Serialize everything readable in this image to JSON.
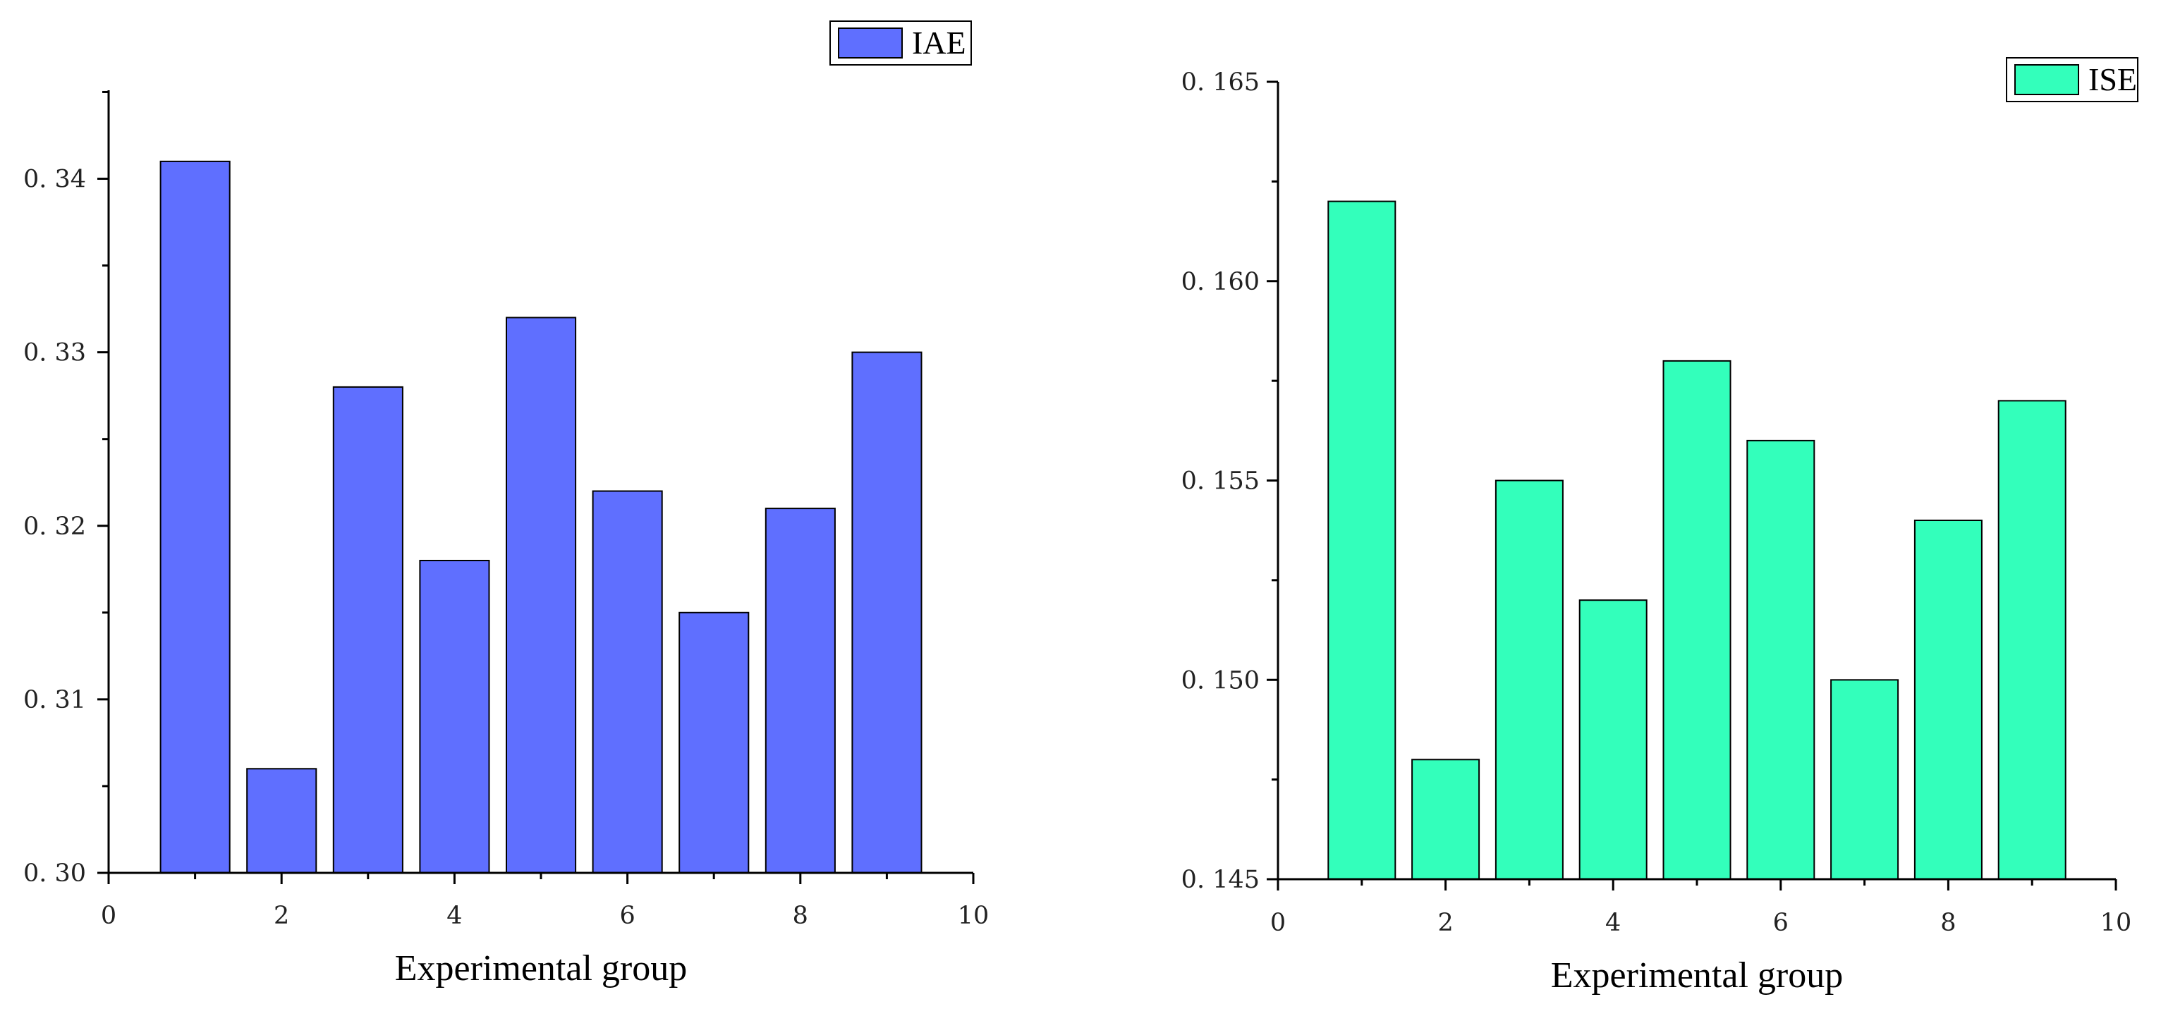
{
  "chart_data": [
    {
      "type": "bar",
      "series_name": "IAE",
      "color": "#5f6fff",
      "x": [
        1,
        2,
        3,
        4,
        5,
        6,
        7,
        8,
        9
      ],
      "values": [
        0.341,
        0.306,
        0.328,
        0.318,
        0.332,
        0.322,
        0.315,
        0.321,
        0.33
      ],
      "xlabel": "Experimental group",
      "ylabel": "",
      "xlim": [
        0,
        10
      ],
      "ylim": [
        0.3,
        0.345
      ],
      "xticks": [
        "0",
        "2",
        "4",
        "6",
        "8",
        "10"
      ],
      "xtick_values": [
        0,
        2,
        4,
        6,
        8,
        10
      ],
      "yticks": [
        "0. 30",
        "0. 31",
        "0. 32",
        "0. 33",
        "0. 34"
      ],
      "ytick_values": [
        0.3,
        0.31,
        0.32,
        0.33,
        0.34
      ],
      "legend": [
        "IAE"
      ],
      "legend_position": "top-right",
      "grid": false
    },
    {
      "type": "bar",
      "series_name": "ISE",
      "color": "#33ffbb",
      "x": [
        1,
        2,
        3,
        4,
        5,
        6,
        7,
        8,
        9
      ],
      "values": [
        0.162,
        0.148,
        0.155,
        0.152,
        0.158,
        0.156,
        0.15,
        0.154,
        0.157
      ],
      "xlabel": "Experimental group",
      "ylabel": "",
      "xlim": [
        0,
        10
      ],
      "ylim": [
        0.145,
        0.165
      ],
      "xticks": [
        "0",
        "2",
        "4",
        "6",
        "8",
        "10"
      ],
      "xtick_values": [
        0,
        2,
        4,
        6,
        8,
        10
      ],
      "yticks": [
        "0. 145",
        "0. 150",
        "0. 155",
        "0. 160",
        "0. 165"
      ],
      "ytick_values": [
        0.145,
        0.15,
        0.155,
        0.16,
        0.165
      ],
      "legend": [
        "ISE"
      ],
      "legend_position": "top-right",
      "grid": false
    }
  ]
}
